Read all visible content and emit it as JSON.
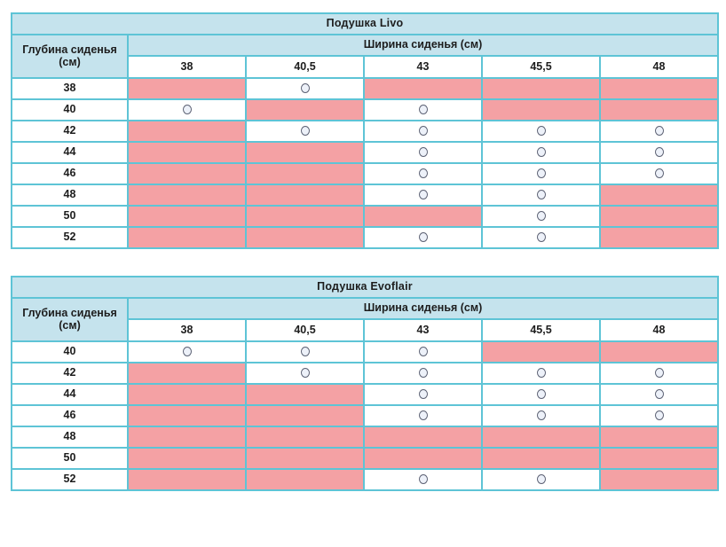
{
  "colors": {
    "header_blue": "#c5e3ed",
    "blocked_pink": "#f4a1a4",
    "border_teal": "#5ec4d6",
    "outer_border_teal": "#8ed5e0",
    "circle_fill": "#edf1f9",
    "circle_stroke": "#5c6173",
    "text": "#1d1d1d"
  },
  "tables": [
    {
      "title": "Подушка Livo",
      "row_header": "Глубина сиденья (см)",
      "col_header": "Ширина сиденья (см)",
      "columns": [
        "38",
        "40,5",
        "43",
        "45,5",
        "48"
      ],
      "rows": [
        {
          "depth": "38",
          "available": [
            false,
            true,
            false,
            false,
            false
          ]
        },
        {
          "depth": "40",
          "available": [
            true,
            false,
            true,
            false,
            false
          ]
        },
        {
          "depth": "42",
          "available": [
            false,
            true,
            true,
            true,
            true
          ]
        },
        {
          "depth": "44",
          "available": [
            false,
            false,
            true,
            true,
            true
          ]
        },
        {
          "depth": "46",
          "available": [
            false,
            false,
            true,
            true,
            true
          ]
        },
        {
          "depth": "48",
          "available": [
            false,
            false,
            true,
            true,
            false
          ]
        },
        {
          "depth": "50",
          "available": [
            false,
            false,
            false,
            true,
            false
          ]
        },
        {
          "depth": "52",
          "available": [
            false,
            false,
            true,
            true,
            false
          ]
        }
      ]
    },
    {
      "title": "Подушка Evoflair",
      "row_header": "Глубина сиденья (см)",
      "col_header": "Ширина сиденья (см)",
      "columns": [
        "38",
        "40,5",
        "43",
        "45,5",
        "48"
      ],
      "rows": [
        {
          "depth": "40",
          "available": [
            true,
            true,
            true,
            false,
            false
          ]
        },
        {
          "depth": "42",
          "available": [
            false,
            true,
            true,
            true,
            true
          ]
        },
        {
          "depth": "44",
          "available": [
            false,
            false,
            true,
            true,
            true
          ]
        },
        {
          "depth": "46",
          "available": [
            false,
            false,
            true,
            true,
            true
          ]
        },
        {
          "depth": "48",
          "available": [
            false,
            false,
            false,
            false,
            false
          ]
        },
        {
          "depth": "50",
          "available": [
            false,
            false,
            false,
            false,
            false
          ]
        },
        {
          "depth": "52",
          "available": [
            false,
            false,
            true,
            true,
            false
          ]
        }
      ]
    }
  ]
}
